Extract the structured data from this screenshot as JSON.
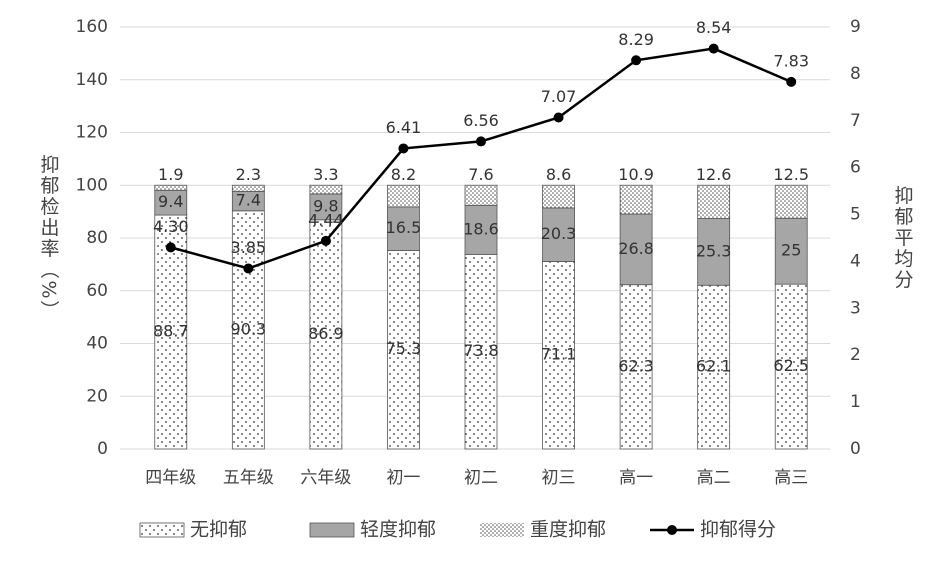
{
  "chart_data": {
    "type": "bar",
    "stacked": true,
    "y_label": "抑郁检出率（%）",
    "y2_label": "抑郁平均分",
    "categories": [
      "四年级",
      "五年级",
      "六年级",
      "初一",
      "初二",
      "初三",
      "高一",
      "高二",
      "高三"
    ],
    "series": [
      {
        "name": "无抑郁",
        "color": "#ffffff",
        "pattern": "dots",
        "values": [
          88.7,
          90.3,
          86.9,
          75.3,
          73.8,
          71.1,
          62.3,
          62.1,
          62.5
        ]
      },
      {
        "name": "轻度抑郁",
        "color": "#a6a6a6",
        "pattern": null,
        "values": [
          9.4,
          7.4,
          9.8,
          16.5,
          18.6,
          20.3,
          26.8,
          25.3,
          25
        ]
      },
      {
        "name": "重度抑郁",
        "color": "#ffffff",
        "pattern": "dense-dots",
        "values": [
          1.9,
          2.3,
          3.3,
          8.2,
          7.6,
          8.6,
          10.9,
          12.6,
          12.5
        ]
      },
      {
        "name": "抑郁得分",
        "type": "line",
        "axis": "y2",
        "color": "#000000",
        "values": [
          4.3,
          3.85,
          4.44,
          6.41,
          6.56,
          7.07,
          8.29,
          8.54,
          7.83
        ],
        "value_labels": [
          "4.30",
          "3.85",
          "4.44",
          "6.41",
          "6.56",
          "7.07",
          "8.29",
          "8.54",
          "7.83"
        ]
      }
    ],
    "ylim": [
      0,
      160
    ],
    "yticks": [
      0,
      20,
      40,
      60,
      80,
      100,
      120,
      140,
      160
    ],
    "y2lim": [
      0,
      9
    ],
    "y2ticks": [
      0,
      1,
      2,
      3,
      4,
      5,
      6,
      7,
      8,
      9
    ],
    "grid": true,
    "legend": "bottom"
  }
}
